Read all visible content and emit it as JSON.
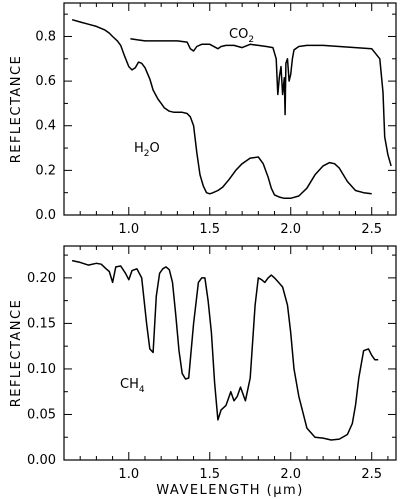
{
  "chart_data": [
    {
      "type": "line",
      "ylabel": "REFLECTANCE",
      "xlim": [
        0.6,
        2.65
      ],
      "ylim": [
        0.0,
        0.95
      ],
      "x_ticks": [
        "1.0",
        "1.5",
        "2.0",
        "2.5"
      ],
      "x_tick_values": [
        1.0,
        1.5,
        2.0,
        2.5
      ],
      "y_ticks": [
        "0.0",
        "0.2",
        "0.4",
        "0.6",
        "0.8"
      ],
      "y_tick_values": [
        0.0,
        0.2,
        0.4,
        0.6,
        0.8
      ],
      "series": [
        {
          "label_main": "H",
          "label_sub": "2",
          "label_tail": "O",
          "x": [
            0.65,
            0.7,
            0.75,
            0.8,
            0.85,
            0.88,
            0.9,
            0.93,
            0.95,
            0.97,
            1.0,
            1.02,
            1.04,
            1.06,
            1.08,
            1.1,
            1.13,
            1.15,
            1.18,
            1.2,
            1.22,
            1.25,
            1.28,
            1.3,
            1.33,
            1.36,
            1.38,
            1.4,
            1.42,
            1.44,
            1.46,
            1.48,
            1.5,
            1.52,
            1.55,
            1.58,
            1.62,
            1.66,
            1.7,
            1.75,
            1.8,
            1.83,
            1.86,
            1.88,
            1.9,
            1.93,
            1.96,
            2.0,
            2.05,
            2.1,
            2.15,
            2.2,
            2.24,
            2.27,
            2.3,
            2.35,
            2.4,
            2.45,
            2.5
          ],
          "y": [
            0.875,
            0.865,
            0.855,
            0.845,
            0.83,
            0.815,
            0.8,
            0.78,
            0.76,
            0.72,
            0.665,
            0.65,
            0.66,
            0.685,
            0.68,
            0.66,
            0.61,
            0.56,
            0.52,
            0.5,
            0.48,
            0.465,
            0.46,
            0.46,
            0.46,
            0.455,
            0.44,
            0.4,
            0.28,
            0.18,
            0.13,
            0.1,
            0.095,
            0.1,
            0.11,
            0.125,
            0.16,
            0.2,
            0.23,
            0.255,
            0.26,
            0.23,
            0.17,
            0.12,
            0.09,
            0.08,
            0.075,
            0.075,
            0.085,
            0.12,
            0.18,
            0.22,
            0.235,
            0.23,
            0.21,
            0.15,
            0.11,
            0.1,
            0.095
          ]
        },
        {
          "label_main": "CO",
          "label_sub": "2",
          "label_tail": "",
          "x": [
            1.01,
            1.05,
            1.1,
            1.2,
            1.3,
            1.36,
            1.38,
            1.4,
            1.42,
            1.45,
            1.5,
            1.55,
            1.57,
            1.6,
            1.65,
            1.7,
            1.75,
            1.8,
            1.85,
            1.89,
            1.91,
            1.92,
            1.93,
            1.94,
            1.95,
            1.96,
            1.965,
            1.97,
            1.98,
            1.99,
            2.0,
            2.01,
            2.02,
            2.05,
            2.1,
            2.2,
            2.3,
            2.4,
            2.5,
            2.55,
            2.57,
            2.58,
            2.6,
            2.62
          ],
          "y": [
            0.79,
            0.785,
            0.78,
            0.78,
            0.78,
            0.775,
            0.745,
            0.735,
            0.755,
            0.765,
            0.765,
            0.745,
            0.755,
            0.76,
            0.76,
            0.75,
            0.765,
            0.76,
            0.755,
            0.75,
            0.7,
            0.54,
            0.62,
            0.665,
            0.54,
            0.615,
            0.45,
            0.68,
            0.7,
            0.6,
            0.63,
            0.7,
            0.74,
            0.755,
            0.76,
            0.76,
            0.755,
            0.75,
            0.745,
            0.7,
            0.55,
            0.35,
            0.27,
            0.22
          ]
        }
      ]
    },
    {
      "type": "line",
      "xlabel": "WAVELENGTH (μm)",
      "ylabel": "REFLECTANCE",
      "xlim": [
        0.6,
        2.65
      ],
      "ylim": [
        0.0,
        0.235
      ],
      "x_ticks": [
        "1.0",
        "1.5",
        "2.0",
        "2.5"
      ],
      "x_tick_values": [
        1.0,
        1.5,
        2.0,
        2.5
      ],
      "y_ticks": [
        "0.00",
        "0.05",
        "0.10",
        "0.15",
        "0.20"
      ],
      "y_tick_values": [
        0.0,
        0.05,
        0.1,
        0.15,
        0.2
      ],
      "series": [
        {
          "label_main": "CH",
          "label_sub": "4",
          "label_tail": "",
          "x": [
            0.65,
            0.7,
            0.75,
            0.8,
            0.83,
            0.86,
            0.88,
            0.9,
            0.92,
            0.95,
            0.98,
            1.0,
            1.02,
            1.05,
            1.08,
            1.11,
            1.13,
            1.15,
            1.17,
            1.19,
            1.21,
            1.23,
            1.25,
            1.27,
            1.29,
            1.31,
            1.33,
            1.35,
            1.37,
            1.4,
            1.43,
            1.45,
            1.47,
            1.49,
            1.51,
            1.53,
            1.55,
            1.57,
            1.6,
            1.63,
            1.65,
            1.67,
            1.69,
            1.72,
            1.75,
            1.78,
            1.8,
            1.82,
            1.84,
            1.86,
            1.88,
            1.9,
            1.92,
            1.95,
            1.98,
            2.0,
            2.02,
            2.05,
            2.1,
            2.15,
            2.2,
            2.25,
            2.3,
            2.35,
            2.38,
            2.4,
            2.42,
            2.45,
            2.48,
            2.5,
            2.52,
            2.54
          ],
          "y": [
            0.219,
            0.217,
            0.214,
            0.216,
            0.215,
            0.21,
            0.207,
            0.195,
            0.212,
            0.213,
            0.205,
            0.198,
            0.208,
            0.21,
            0.2,
            0.15,
            0.122,
            0.118,
            0.18,
            0.205,
            0.21,
            0.212,
            0.209,
            0.195,
            0.16,
            0.12,
            0.095,
            0.089,
            0.09,
            0.15,
            0.195,
            0.2,
            0.2,
            0.175,
            0.14,
            0.085,
            0.044,
            0.055,
            0.06,
            0.075,
            0.065,
            0.07,
            0.08,
            0.065,
            0.09,
            0.17,
            0.2,
            0.198,
            0.195,
            0.2,
            0.203,
            0.2,
            0.196,
            0.19,
            0.17,
            0.14,
            0.1,
            0.07,
            0.035,
            0.025,
            0.024,
            0.022,
            0.023,
            0.028,
            0.04,
            0.06,
            0.09,
            0.12,
            0.122,
            0.115,
            0.11,
            0.11
          ]
        }
      ]
    }
  ]
}
